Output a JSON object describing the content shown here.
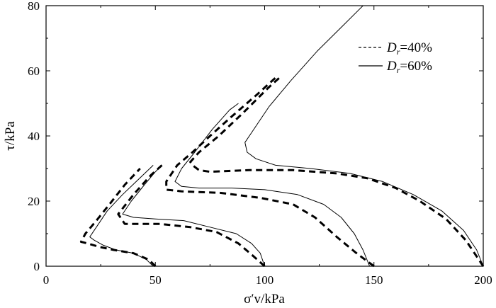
{
  "chart_data": {
    "type": "line",
    "x_axis": {
      "label": "σ′v/kPa",
      "range": [
        0,
        200
      ],
      "ticks": [
        0,
        50,
        100,
        150,
        200
      ],
      "tick_labels": [
        "0",
        "50",
        "100",
        "150",
        "200"
      ]
    },
    "y_axis": {
      "label": "τ/kPa",
      "range": [
        0,
        80
      ],
      "ticks": [
        0,
        20,
        40,
        60,
        80
      ],
      "tick_labels": [
        "0",
        "20",
        "40",
        "60",
        "80"
      ]
    },
    "grid": false,
    "legend": {
      "placement": "top-right",
      "entries": [
        {
          "symbol": "D",
          "subscript": "r",
          "value": "=40%",
          "style": "dashed"
        },
        {
          "symbol": "D",
          "subscript": "r",
          "value": "=60%",
          "style": "solid"
        }
      ]
    },
    "series": [
      {
        "group": "Dr=40%",
        "style": "dashed",
        "points": [
          [
            50,
            0
          ],
          [
            47,
            2
          ],
          [
            40,
            4
          ],
          [
            31,
            5
          ],
          [
            24,
            6
          ],
          [
            19,
            7
          ],
          [
            16,
            7.5
          ],
          [
            18,
            10
          ],
          [
            23,
            14
          ],
          [
            29,
            19
          ],
          [
            36,
            25
          ],
          [
            43,
            30
          ]
        ]
      },
      {
        "group": "Dr=40%",
        "style": "dashed",
        "points": [
          [
            100,
            0
          ],
          [
            95,
            3
          ],
          [
            88,
            7
          ],
          [
            78,
            10.5
          ],
          [
            66,
            12
          ],
          [
            52,
            13
          ],
          [
            36,
            13
          ],
          [
            33,
            16
          ],
          [
            40,
            22
          ],
          [
            48,
            28
          ],
          [
            53,
            31
          ]
        ]
      },
      {
        "group": "Dr=40%",
        "style": "dashed",
        "points": [
          [
            150,
            0
          ],
          [
            142,
            4
          ],
          [
            133,
            9
          ],
          [
            123,
            15
          ],
          [
            113,
            19
          ],
          [
            98,
            21
          ],
          [
            80,
            22.5
          ],
          [
            62,
            23
          ],
          [
            55,
            23.5
          ],
          [
            55,
            26
          ],
          [
            60,
            31
          ],
          [
            67,
            35
          ],
          [
            75,
            40
          ],
          [
            85,
            46
          ],
          [
            97,
            53
          ],
          [
            106,
            58.5
          ]
        ]
      },
      {
        "group": "Dr=40%",
        "style": "dashed",
        "points": [
          [
            200,
            0
          ],
          [
            192,
            8
          ],
          [
            183,
            14.5
          ],
          [
            171,
            20
          ],
          [
            160,
            24
          ],
          [
            147,
            27
          ],
          [
            133,
            28.5
          ],
          [
            113,
            29.5
          ],
          [
            93,
            29.5
          ],
          [
            75,
            29
          ],
          [
            70,
            29.5
          ],
          [
            67,
            31
          ],
          [
            66,
            32
          ],
          [
            70,
            35
          ],
          [
            79,
            40
          ],
          [
            90,
            47
          ],
          [
            102,
            55
          ],
          [
            107,
            58
          ]
        ]
      },
      {
        "group": "Dr=60%",
        "style": "solid",
        "points": [
          [
            49,
            0
          ],
          [
            46,
            2
          ],
          [
            40,
            4
          ],
          [
            32,
            5
          ],
          [
            26,
            6.5
          ],
          [
            22,
            8
          ],
          [
            20,
            9
          ],
          [
            23,
            12
          ],
          [
            28,
            17
          ],
          [
            35,
            22
          ],
          [
            42,
            26.5
          ],
          [
            49,
            31
          ]
        ]
      },
      {
        "group": "Dr=60%",
        "style": "solid",
        "points": [
          [
            100,
            0
          ],
          [
            98,
            4
          ],
          [
            94,
            7
          ],
          [
            87,
            10
          ],
          [
            75,
            12
          ],
          [
            63,
            14
          ],
          [
            50,
            14.5
          ],
          [
            40,
            15
          ],
          [
            35,
            16
          ],
          [
            39,
            20
          ],
          [
            45,
            25
          ],
          [
            50,
            29
          ],
          [
            53,
            31
          ]
        ]
      },
      {
        "group": "Dr=60%",
        "style": "solid",
        "points": [
          [
            148,
            0
          ],
          [
            145,
            5
          ],
          [
            141,
            10
          ],
          [
            135,
            15
          ],
          [
            127,
            19
          ],
          [
            115,
            22
          ],
          [
            100,
            23.5
          ],
          [
            85,
            24
          ],
          [
            70,
            24
          ],
          [
            62,
            24.5
          ],
          [
            59,
            26
          ],
          [
            62,
            30
          ],
          [
            68,
            35
          ],
          [
            76,
            42
          ],
          [
            84,
            48
          ],
          [
            88,
            50
          ]
        ]
      },
      {
        "group": "Dr=60%",
        "style": "solid",
        "points": [
          [
            200,
            0
          ],
          [
            197,
            5
          ],
          [
            191,
            11
          ],
          [
            181,
            17
          ],
          [
            168,
            22
          ],
          [
            154,
            26
          ],
          [
            139,
            28.5
          ],
          [
            121,
            30
          ],
          [
            105,
            31
          ],
          [
            96,
            33
          ],
          [
            92,
            35
          ],
          [
            91,
            38
          ],
          [
            94,
            41
          ],
          [
            102,
            49
          ],
          [
            112,
            57
          ],
          [
            124,
            66
          ],
          [
            136,
            74
          ],
          [
            145,
            80
          ]
        ]
      }
    ]
  }
}
